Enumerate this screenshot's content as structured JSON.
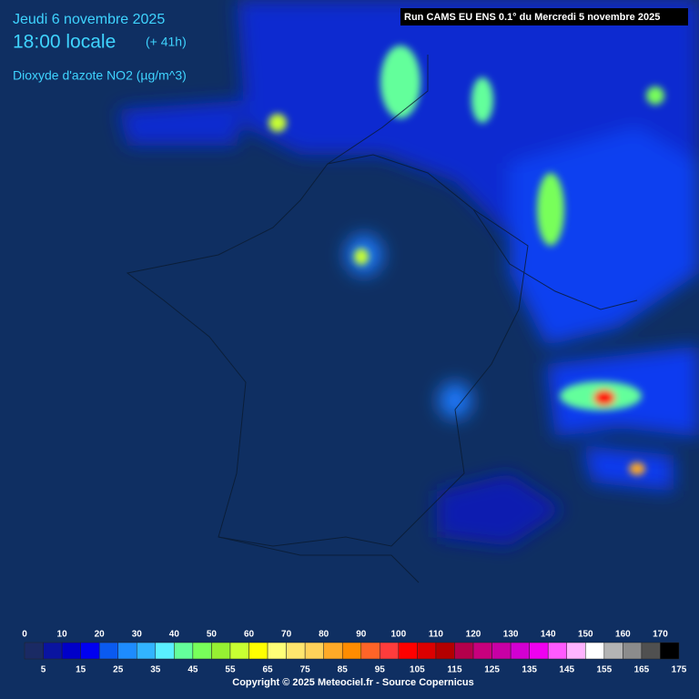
{
  "header": {
    "date": "Jeudi 6 novembre 2025",
    "time": "18:00 locale",
    "lead": "(+ 41h)",
    "parameter": "Dioxyde d'azote NO2 (µg/m^3)",
    "run": "Run CAMS EU ENS 0.1° du Mercredi 5 novembre 2025"
  },
  "legend": {
    "top_labels": [
      0,
      10,
      20,
      30,
      40,
      50,
      60,
      70,
      80,
      90,
      100,
      110,
      120,
      130,
      140,
      150,
      160,
      170
    ],
    "bottom_labels": [
      5,
      15,
      25,
      35,
      45,
      55,
      65,
      75,
      85,
      95,
      105,
      115,
      125,
      135,
      145,
      155,
      165,
      175
    ],
    "colors": [
      "#1a2a64",
      "#0a14a0",
      "#0000c8",
      "#0000f0",
      "#0a5af0",
      "#1e8cff",
      "#32b4ff",
      "#5af0ff",
      "#64ff9b",
      "#78ff5a",
      "#96f032",
      "#c8ff32",
      "#ffff00",
      "#ffff78",
      "#ffe66e",
      "#ffd25a",
      "#ffaa28",
      "#ff8c00",
      "#ff6428",
      "#ff3c3c",
      "#ff0000",
      "#dc0000",
      "#b40000",
      "#b4004b",
      "#c8007d",
      "#c800a5",
      "#d200d2",
      "#f000f0",
      "#ff5aff",
      "#ffb4ff",
      "#ffffff",
      "#b4b4b4",
      "#8c8c8c",
      "#505050",
      "#000000"
    ]
  },
  "footer": {
    "copyright": "Copyright © 2025 Meteociel.fr - Source Copernicus"
  }
}
